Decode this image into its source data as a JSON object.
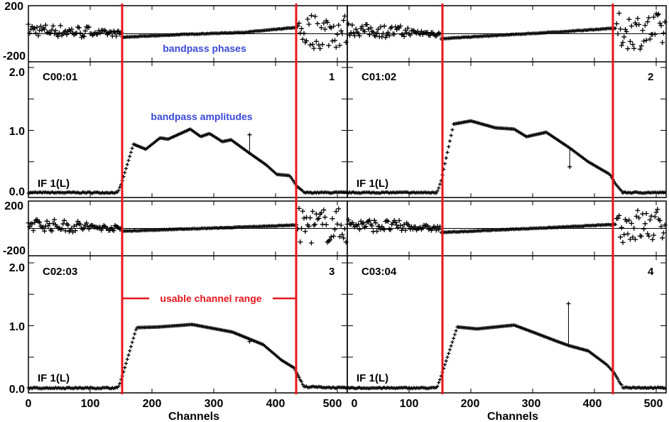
{
  "chart_data": {
    "type": "scatter",
    "xlabel": "Channels",
    "xlim": [
      0,
      515
    ],
    "x_ticks": [
      "0",
      "100",
      "200",
      "300",
      "400",
      "500"
    ],
    "phase_ylim": [
      -200,
      200
    ],
    "phase_ticks": [
      "200",
      "-200"
    ],
    "amp_ylim": [
      0,
      2.0
    ],
    "amp_ticks": [
      "2.0",
      "1.0",
      "0.0"
    ],
    "usable_channel_range": [
      152,
      434
    ],
    "annotations": {
      "phases": "bandpass phases",
      "amplitudes": "bandpass amplitudes",
      "range": "usable channel range"
    },
    "colors": {
      "marker": "#000000",
      "range_lines": "#e8141c",
      "annotation": "#3a48d8"
    },
    "panels": [
      {
        "baseline": "C00:01",
        "number": "1",
        "if_label": "IF 1(L)",
        "amp_profile": [
          [
            0,
            0.01
          ],
          [
            145,
            0.01
          ],
          [
            152,
            0.2
          ],
          [
            170,
            0.78
          ],
          [
            190,
            0.7
          ],
          [
            213,
            0.88
          ],
          [
            226,
            0.86
          ],
          [
            262,
            1.02
          ],
          [
            279,
            0.9
          ],
          [
            293,
            0.95
          ],
          [
            314,
            0.82
          ],
          [
            328,
            0.85
          ],
          [
            356,
            0.65
          ],
          [
            385,
            0.45
          ],
          [
            402,
            0.3
          ],
          [
            423,
            0.28
          ],
          [
            434,
            0.12
          ],
          [
            446,
            0.01
          ],
          [
            515,
            0.01
          ]
        ],
        "amp_spike": [
          358,
          0.93
        ],
        "phase_profile": [
          [
            152,
            -25
          ],
          [
            250,
            -5
          ],
          [
            350,
            10
          ],
          [
            434,
            45
          ]
        ]
      },
      {
        "baseline": "C01:02",
        "number": "2",
        "if_label": "IF 1(L)",
        "amp_profile": [
          [
            0,
            0.01
          ],
          [
            145,
            0.01
          ],
          [
            152,
            0.2
          ],
          [
            172,
            1.1
          ],
          [
            200,
            1.15
          ],
          [
            240,
            1.04
          ],
          [
            270,
            1.02
          ],
          [
            290,
            0.9
          ],
          [
            322,
            0.97
          ],
          [
            360,
            0.72
          ],
          [
            390,
            0.5
          ],
          [
            425,
            0.3
          ],
          [
            434,
            0.15
          ],
          [
            446,
            0.01
          ],
          [
            515,
            0.01
          ]
        ],
        "amp_spike": [
          360,
          0.42
        ],
        "phase_profile": [
          [
            152,
            -35
          ],
          [
            250,
            -10
          ],
          [
            350,
            15
          ],
          [
            434,
            40
          ]
        ]
      },
      {
        "baseline": "C02:03",
        "number": "3",
        "if_label": "IF 1(L)",
        "amp_profile": [
          [
            0,
            0.01
          ],
          [
            145,
            0.01
          ],
          [
            152,
            0.2
          ],
          [
            175,
            0.97
          ],
          [
            210,
            0.98
          ],
          [
            265,
            1.02
          ],
          [
            330,
            0.9
          ],
          [
            380,
            0.7
          ],
          [
            410,
            0.45
          ],
          [
            430,
            0.33
          ],
          [
            446,
            0.03
          ],
          [
            515,
            0.01
          ]
        ],
        "amp_spike": [
          358,
          0.75
        ],
        "phase_profile": [
          [
            152,
            -20
          ],
          [
            250,
            -5
          ],
          [
            350,
            10
          ],
          [
            434,
            25
          ]
        ]
      },
      {
        "baseline": "C03:04",
        "number": "4",
        "if_label": "IF 1(L)",
        "amp_profile": [
          [
            0,
            0.01
          ],
          [
            145,
            0.01
          ],
          [
            152,
            0.2
          ],
          [
            178,
            0.98
          ],
          [
            210,
            0.95
          ],
          [
            270,
            1.01
          ],
          [
            300,
            0.9
          ],
          [
            340,
            0.75
          ],
          [
            360,
            0.68
          ],
          [
            390,
            0.6
          ],
          [
            420,
            0.38
          ],
          [
            432,
            0.25
          ],
          [
            446,
            0.02
          ],
          [
            515,
            0.01
          ]
        ],
        "amp_spike": [
          358,
          1.35
        ],
        "phase_profile": [
          [
            152,
            -30
          ],
          [
            250,
            -10
          ],
          [
            350,
            10
          ],
          [
            434,
            30
          ]
        ]
      }
    ]
  }
}
